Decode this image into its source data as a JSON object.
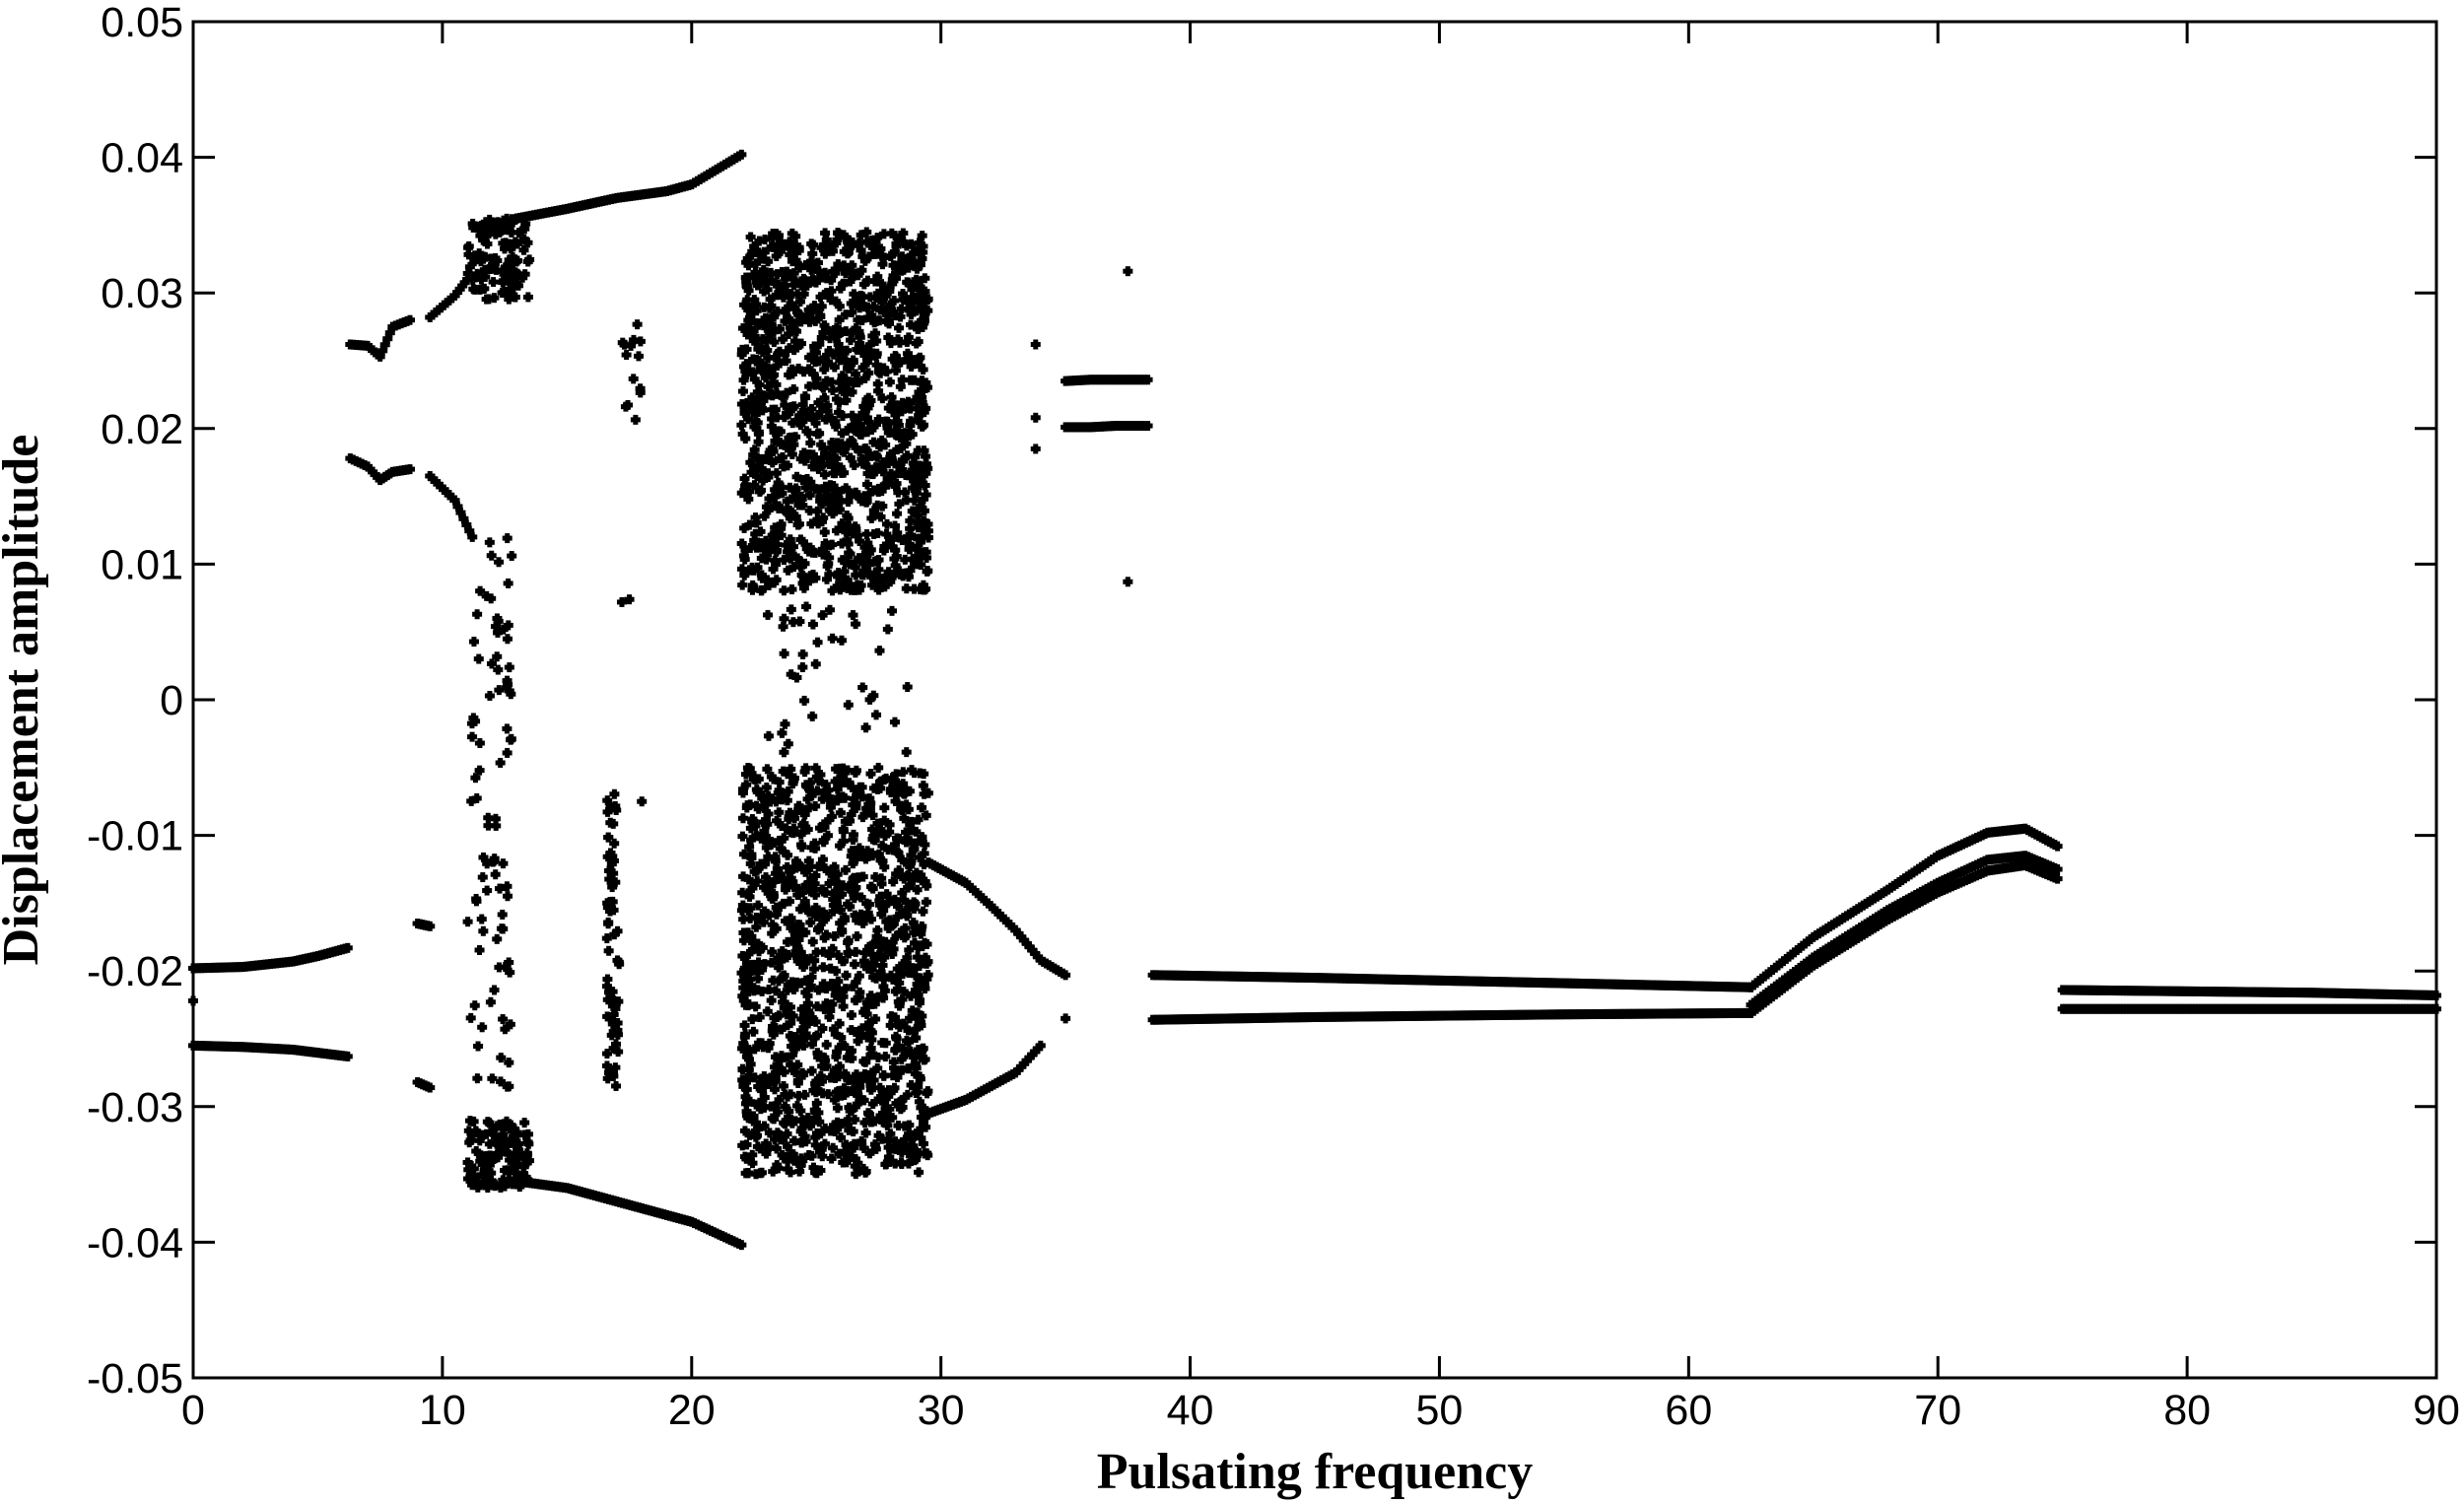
{
  "chart_data": {
    "type": "scatter",
    "title": "",
    "xlabel": "Pulsating frequency",
    "ylabel": "Displacement amplitude",
    "xlim": [
      0,
      90
    ],
    "ylim": [
      -0.05,
      0.05
    ],
    "grid": false,
    "xticks": [
      0,
      10,
      20,
      30,
      40,
      50,
      60,
      70,
      80,
      90
    ],
    "xtick_labels": [
      "0",
      "10",
      "20",
      "30",
      "40",
      "50",
      "60",
      "70",
      "80",
      "90"
    ],
    "yticks": [
      0.05,
      0.04,
      0.03,
      0.02,
      0.01,
      0,
      -0.01,
      -0.02,
      -0.03,
      -0.04,
      -0.05
    ],
    "ytick_labels": [
      "0.05",
      "0.04",
      "0.03",
      "0.02",
      "0.01",
      "0",
      "-0.01",
      "-0.02",
      "-0.03",
      "-0.04",
      "-0.05"
    ],
    "marker_color": "#000000",
    "series": [
      {
        "branches": [
          {
            "x": [
              0,
              2,
              4,
              5,
              6.2
            ],
            "y": [
              -0.0198,
              -0.0197,
              -0.0193,
              -0.0189,
              -0.0183
            ]
          },
          {
            "x": [
              0,
              2,
              4,
              6.2
            ],
            "y": [
              -0.0255,
              -0.0256,
              -0.0258,
              -0.0263
            ]
          },
          {
            "x": [
              6.3,
              7.0,
              7.5,
              8.0,
              8.7
            ],
            "y": [
              0.0262,
              0.0261,
              0.0253,
              0.0275,
              0.028
            ]
          },
          {
            "x": [
              6.3,
              7.0,
              7.5,
              8.0,
              8.7
            ],
            "y": [
              0.0178,
              0.0172,
              0.0162,
              0.0168,
              0.017
            ]
          },
          {
            "x": [
              9.0,
              9.5
            ],
            "y": [
              -0.0165,
              -0.0167
            ]
          },
          {
            "x": [
              9.0,
              9.5
            ],
            "y": [
              -0.0282,
              -0.0286
            ]
          },
          {
            "x": [
              9.5,
              10.5,
              11.0
            ],
            "y": [
              0.0282,
              0.0298,
              0.031
            ]
          },
          {
            "x": [
              9.5,
              10.5,
              11.2
            ],
            "y": [
              0.0165,
              0.0147,
              0.012
            ]
          },
          {
            "x": [
              13,
              15,
              17,
              19,
              20,
              22
            ],
            "y": [
              0.0355,
              0.0362,
              0.037,
              0.0375,
              0.038,
              0.0402
            ]
          },
          {
            "x": [
              13,
              15,
              17,
              19,
              20,
              22
            ],
            "y": [
              -0.0355,
              -0.036,
              -0.037,
              -0.038,
              -0.0385,
              -0.0402
            ]
          },
          {
            "x": [
              29.5,
              31,
              32,
              33,
              34,
              35
            ],
            "y": [
              -0.012,
              -0.0135,
              -0.0152,
              -0.017,
              -0.0192,
              -0.0203
            ]
          },
          {
            "x": [
              29.5,
              31,
              32,
              33,
              34
            ],
            "y": [
              -0.0305,
              -0.0295,
              -0.0285,
              -0.0275,
              -0.0255
            ]
          },
          {
            "x": [
              35.0,
              36,
              37,
              38.3
            ],
            "y": [
              0.0235,
              0.0236,
              0.0236,
              0.0236
            ]
          },
          {
            "x": [
              35.0,
              36,
              37,
              38.3
            ],
            "y": [
              0.0201,
              0.0201,
              0.0202,
              0.0202
            ]
          },
          {
            "x": [
              38.5,
              45,
              55,
              62.5
            ],
            "y": [
              -0.0203,
              -0.0205,
              -0.0209,
              -0.0212
            ]
          },
          {
            "x": [
              38.5,
              45,
              55,
              62.5
            ],
            "y": [
              -0.0236,
              -0.0234,
              -0.0232,
              -0.0231
            ]
          },
          {
            "x": [
              62.5,
              65,
              68,
              70,
              72,
              73.5,
              74.8
            ],
            "y": [
              -0.0212,
              -0.0175,
              -0.014,
              -0.0115,
              -0.0098,
              -0.0095,
              -0.0108
            ]
          },
          {
            "x": [
              62.5,
              65,
              68,
              70,
              72,
              73.5,
              74.8
            ],
            "y": [
              -0.0225,
              -0.019,
              -0.0155,
              -0.0135,
              -0.0118,
              -0.0115,
              -0.0125
            ]
          },
          {
            "x": [
              62.5,
              65,
              68,
              70,
              72,
              73.5,
              74.8
            ],
            "y": [
              -0.0231,
              -0.0196,
              -0.0162,
              -0.0142,
              -0.0126,
              -0.0122,
              -0.0132
            ]
          },
          {
            "x": [
              75,
              80,
              85,
              90
            ],
            "y": [
              -0.0214,
              -0.0215,
              -0.0216,
              -0.0218
            ]
          },
          {
            "x": [
              75,
              80,
              85,
              90
            ],
            "y": [
              -0.0228,
              -0.0228,
              -0.0228,
              -0.0228
            ]
          }
        ],
        "clusters": [
          {
            "x": [
              11.0,
              13.5
            ],
            "y": [
              0.0295,
              0.0355
            ],
            "n": 130
          },
          {
            "x": [
              11.0,
              13.5
            ],
            "y": [
              -0.036,
              -0.031
            ],
            "n": 130
          },
          {
            "x": [
              11.0,
              12.8
            ],
            "y": [
              -0.029,
              0.012
            ],
            "n": 90
          },
          {
            "x": [
              16.6,
              17.1
            ],
            "y": [
              -0.0285,
              -0.0055
            ],
            "n": 70
          },
          {
            "x": [
              17.2,
              18.0
            ],
            "y": [
              0.0205,
              0.028
            ],
            "n": 14
          },
          {
            "x": [
              22.0,
              29.5
            ],
            "y": [
              0.008,
              0.0345
            ],
            "n": 1300
          },
          {
            "x": [
              22.0,
              29.5
            ],
            "y": [
              -0.035,
              -0.005
            ],
            "n": 1300
          },
          {
            "x": [
              23.0,
              29.0
            ],
            "y": [
              -0.004,
              0.007
            ],
            "n": 40
          }
        ],
        "isolated": [
          {
            "x": 0.0,
            "y": -0.0222
          },
          {
            "x": 17.2,
            "y": 0.0072
          },
          {
            "x": 17.5,
            "y": 0.0074
          },
          {
            "x": 18.0,
            "y": -0.0075
          },
          {
            "x": 33.8,
            "y": 0.0262
          },
          {
            "x": 33.8,
            "y": 0.0208
          },
          {
            "x": 33.8,
            "y": 0.0185
          },
          {
            "x": 35.0,
            "y": -0.0235
          },
          {
            "x": 37.5,
            "y": 0.0316
          },
          {
            "x": 37.5,
            "y": 0.0087
          }
        ]
      }
    ]
  }
}
